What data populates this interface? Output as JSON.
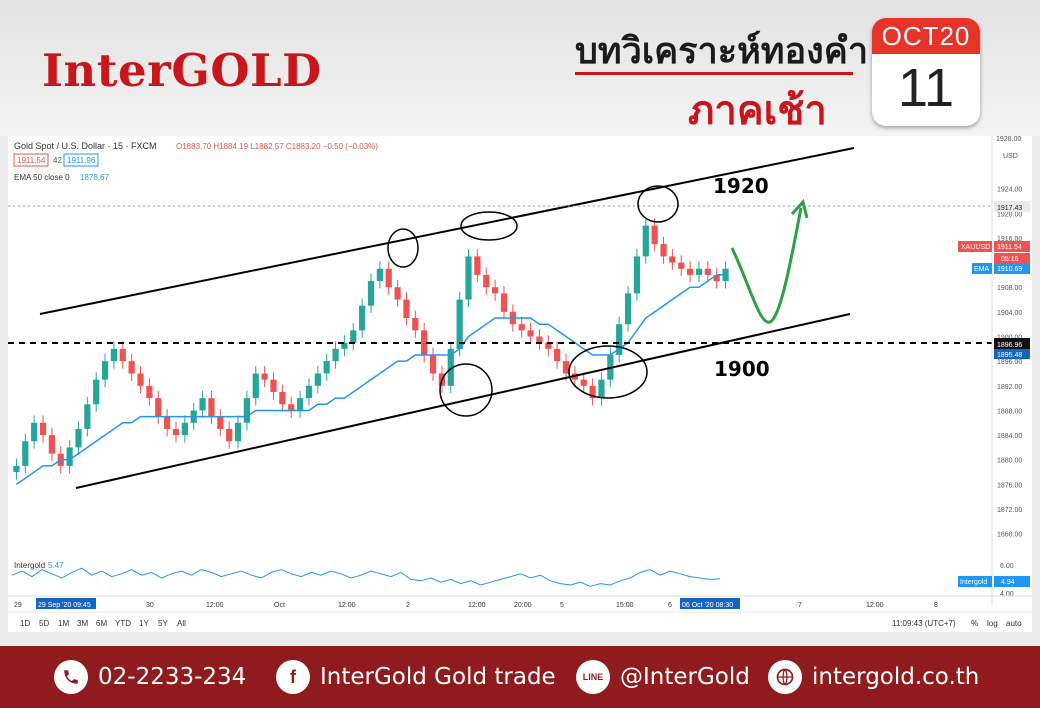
{
  "header": {
    "logo": "InterGOLD",
    "title": "บทวิเคราะห์ทองคำ",
    "subtitle": "ภาคเช้า",
    "month": "OCT20",
    "day": "11"
  },
  "toolbar": {
    "symbol": "Gold Spot / U.S. Dollar · 15 · FXCM",
    "ohlc": "O1883.70 H1884.19 L1882.57 C1883.20 −0.50 (−0.03%)",
    "bid": "1911.54",
    "spread": "42",
    "ask": "1911.96",
    "ema_label": "EMA 50 close 0",
    "ema_value": "1878.67",
    "osc_label": "Intergold",
    "osc_value": "5.47"
  },
  "timeframes": [
    "1D",
    "5D",
    "1M",
    "3M",
    "6M",
    "YTD",
    "1Y",
    "5Y",
    "All"
  ],
  "status": {
    "clock": "11:09:43 (UTC+7)",
    "percent": "%",
    "log": "log",
    "auto": "auto"
  },
  "xaxis": {
    "ticks": [
      "29",
      "29 Sep '20  09:45",
      "30",
      "12:00",
      "Oct",
      "12:00",
      "2",
      "12:00",
      "20:00",
      "5",
      "15:00",
      "6",
      "06 Oct '20  08:30",
      "7",
      "12:00",
      "8"
    ]
  },
  "yaxis": {
    "unit": "USD",
    "ticks": [
      "1924.00",
      "1920.00",
      "1916.00",
      "1912.00",
      "1908.00",
      "1904.00",
      "1900.00",
      "1896.00",
      "1892.00",
      "1888.00",
      "1884.00",
      "1880.00",
      "1876.00",
      "1872.00",
      "1868.00"
    ],
    "top_tag": "1928.00",
    "osc_ticks": [
      "6.00",
      "4.00"
    ]
  },
  "price_tags": {
    "line1": "1917.43",
    "xauusd_label": "XAUUSD",
    "xauusd": "1911.54",
    "countdown": "05:16",
    "ema_label": "EMA",
    "ema": "1910.69",
    "line2": "1896.96",
    "low": "1895.48",
    "osc_label": "Intergold",
    "osc": "4.94"
  },
  "annotations": {
    "level_high": "1920",
    "level_low": "1900"
  },
  "colors": {
    "up": "#26a69a",
    "down": "#ef5350",
    "ema": "#2196f3",
    "arrow": "#2ea043",
    "brand": "#c8171c"
  },
  "chart_data": {
    "type": "candlestick",
    "title": "Gold Spot / U.S. Dollar",
    "timeframe": "15",
    "ylim": [
      1866,
      1928
    ],
    "levels": [
      1920,
      1900
    ],
    "series": [
      {
        "name": "XAUUSD",
        "close": [
          1879,
          1883,
          1886,
          1884,
          1881,
          1879,
          1882,
          1885,
          1889,
          1893,
          1896,
          1898,
          1896,
          1894,
          1892,
          1890,
          1887,
          1885,
          1884,
          1886,
          1888,
          1890,
          1887,
          1885,
          1883,
          1886,
          1890,
          1894,
          1893,
          1891,
          1889,
          1888,
          1890,
          1892,
          1894,
          1896,
          1898,
          1899,
          1901,
          1905,
          1909,
          1911,
          1908,
          1906,
          1903,
          1901,
          1897,
          1894,
          1892,
          1898,
          1906,
          1913,
          1910,
          1908,
          1907,
          1904,
          1902,
          1901,
          1900,
          1899,
          1898,
          1896,
          1894,
          1893,
          1892,
          1890,
          1893,
          1897,
          1902,
          1907,
          1913,
          1918,
          1915,
          1913,
          1912,
          1911,
          1910,
          1911,
          1910,
          1909,
          1911
        ]
      },
      {
        "name": "EMA 50",
        "close": [
          1876,
          1877,
          1878,
          1879,
          1879,
          1880,
          1880,
          1881,
          1882,
          1883,
          1884,
          1885,
          1886,
          1886,
          1887,
          1887,
          1887,
          1887,
          1887,
          1887,
          1887,
          1887,
          1887,
          1887,
          1887,
          1887,
          1887,
          1888,
          1888,
          1888,
          1888,
          1888,
          1888,
          1888,
          1889,
          1889,
          1890,
          1890,
          1891,
          1892,
          1893,
          1894,
          1895,
          1896,
          1896,
          1897,
          1897,
          1897,
          1897,
          1897,
          1898,
          1900,
          1901,
          1902,
          1903,
          1903,
          1903,
          1903,
          1903,
          1902,
          1902,
          1901,
          1900,
          1899,
          1898,
          1897,
          1897,
          1897,
          1898,
          1899,
          1901,
          1903,
          1904,
          1905,
          1906,
          1907,
          1908,
          1908,
          1909,
          1910,
          1910
        ]
      }
    ],
    "oscillator": {
      "name": "Intergold",
      "values": [
        5.2,
        5.5,
        5.1,
        5.6,
        5.3,
        5.0,
        5.4,
        5.7,
        5.2,
        5.5,
        5.1,
        5.3,
        5.6,
        5.2,
        5.4,
        5.0,
        5.3,
        5.5,
        5.2,
        5.6,
        5.4,
        5.1,
        5.3,
        5.5,
        5.2,
        5.0,
        5.4,
        5.6,
        5.3,
        5.1,
        5.4,
        5.2,
        5.5,
        5.3,
        5.0,
        5.2,
        5.5,
        5.3,
        5.1,
        5.4,
        4.9,
        4.8,
        5.0,
        4.7,
        4.9,
        4.6,
        4.8,
        4.5,
        4.7,
        4.9,
        5.1,
        5.3,
        5.0,
        5.2,
        4.8,
        4.6,
        4.5,
        4.7,
        4.4,
        4.6,
        4.5,
        4.8,
        5.0,
        5.4,
        5.6,
        5.2,
        5.5,
        5.3,
        5.1,
        5.0,
        4.9,
        4.94
      ]
    }
  },
  "footer": {
    "phone": "02-2233-234",
    "facebook": "InterGold Gold trade",
    "line": "@InterGold",
    "web": "intergold.co.th",
    "fb_glyph": "f",
    "line_glyph": "LINE"
  }
}
